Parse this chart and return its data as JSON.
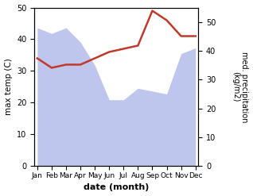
{
  "months": [
    "Jan",
    "Feb",
    "Mar",
    "Apr",
    "May",
    "Jun",
    "Jul",
    "Aug",
    "Sep",
    "Oct",
    "Nov",
    "Dec"
  ],
  "month_x": [
    0,
    1,
    2,
    3,
    4,
    5,
    6,
    7,
    8,
    9,
    10,
    11
  ],
  "max_temp": [
    34,
    31,
    32,
    32,
    34,
    36,
    37,
    38,
    49,
    46,
    41,
    41
  ],
  "precipitation": [
    48,
    46,
    48,
    43,
    35,
    23,
    23,
    27,
    26,
    25,
    39,
    41
  ],
  "temp_color": "#c0392b",
  "precip_fill_color": "#aab4e8",
  "precip_fill_alpha": 0.75,
  "temp_ylim": [
    0,
    50
  ],
  "precip_ylim": [
    0,
    55
  ],
  "temp_yticks": [
    0,
    10,
    20,
    30,
    40,
    50
  ],
  "precip_yticks": [
    0,
    10,
    20,
    30,
    40,
    50
  ],
  "xlabel": "date (month)",
  "ylabel_left": "max temp (C)",
  "ylabel_right": "med. precipitation\n(kg/m2)",
  "title": "",
  "figsize": [
    3.18,
    2.47
  ],
  "dpi": 100
}
